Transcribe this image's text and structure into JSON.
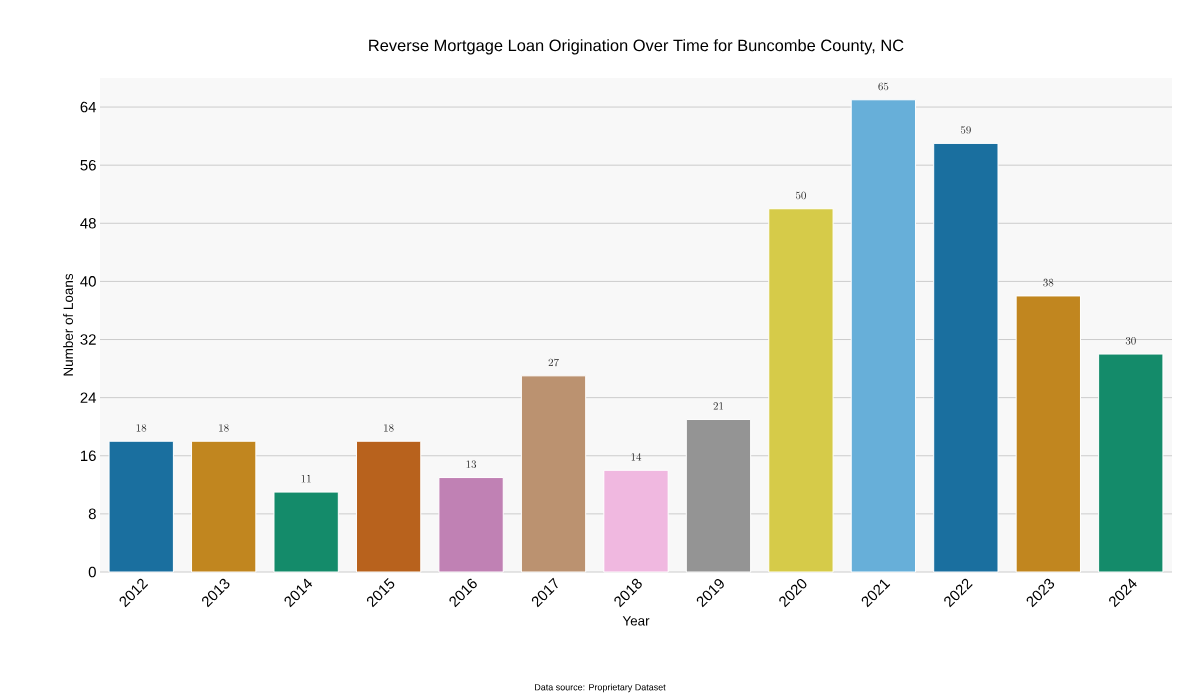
{
  "chart_data": {
    "type": "bar",
    "title": "Reverse Mortgage Loan Origination Over Time for Buncombe County, NC",
    "xlabel": "Year",
    "ylabel": "Number of Loans",
    "categories": [
      "2012",
      "2013",
      "2014",
      "2015",
      "2016",
      "2017",
      "2018",
      "2019",
      "2020",
      "2021",
      "2022",
      "2023",
      "2024"
    ],
    "values": [
      18,
      18,
      11,
      18,
      13,
      27,
      14,
      21,
      50,
      65,
      59,
      38,
      30
    ],
    "colors": [
      "#1a6f9f",
      "#c1861f",
      "#148b6a",
      "#b8621d",
      "#c081b4",
      "#bb9270",
      "#f0b8e0",
      "#949494",
      "#d6cb49",
      "#67afd9",
      "#1a6f9f",
      "#c1861f",
      "#148b6a"
    ],
    "ylim": [
      0,
      68
    ],
    "yticks": [
      0,
      8,
      16,
      24,
      32,
      40,
      48,
      56,
      64
    ],
    "grid": "y",
    "data_labels": true,
    "annotations": [
      "Data source: Proprietary Dataset"
    ]
  }
}
